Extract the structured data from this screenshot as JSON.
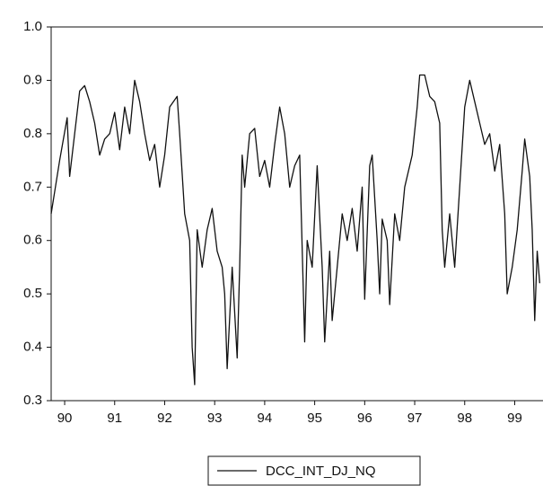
{
  "chart_data": {
    "type": "line",
    "x": [
      90.23,
      90.4,
      90.55,
      90.6,
      90.7,
      90.8,
      90.9,
      91.0,
      91.1,
      91.2,
      91.3,
      91.4,
      91.5,
      91.6,
      91.7,
      91.8,
      91.9,
      92.0,
      92.1,
      92.2,
      92.3,
      92.4,
      92.5,
      92.6,
      92.75,
      92.8,
      92.9,
      93.0,
      93.05,
      93.1,
      93.15,
      93.25,
      93.35,
      93.45,
      93.55,
      93.65,
      93.7,
      93.75,
      93.85,
      93.95,
      94.0,
      94.05,
      94.1,
      94.2,
      94.3,
      94.4,
      94.5,
      94.6,
      94.7,
      94.8,
      94.9,
      95.0,
      95.1,
      95.2,
      95.3,
      95.35,
      95.45,
      95.55,
      95.65,
      95.7,
      95.8,
      95.85,
      95.95,
      96.05,
      96.15,
      96.25,
      96.35,
      96.45,
      96.5,
      96.6,
      96.65,
      96.75,
      96.8,
      96.85,
      96.95,
      97.0,
      97.1,
      97.2,
      97.3,
      97.45,
      97.55,
      97.6,
      97.7,
      97.8,
      97.9,
      98.0,
      98.05,
      98.1,
      98.2,
      98.3,
      98.4,
      98.5,
      98.6,
      98.7,
      98.8,
      98.9,
      99.0,
      99.1,
      99.2,
      99.3,
      99.35,
      99.45,
      99.55,
      99.65,
      99.7,
      99.8,
      99.85,
      99.9,
      99.95,
      100.0
    ],
    "series": [
      {
        "name": "DCC_INT_DJ_NQ",
        "color": "#111111",
        "values": [
          0.65,
          0.75,
          0.83,
          0.72,
          0.8,
          0.88,
          0.89,
          0.86,
          0.82,
          0.76,
          0.79,
          0.8,
          0.84,
          0.77,
          0.85,
          0.8,
          0.9,
          0.86,
          0.8,
          0.75,
          0.78,
          0.7,
          0.76,
          0.85,
          0.87,
          0.8,
          0.65,
          0.6,
          0.4,
          0.33,
          0.62,
          0.55,
          0.62,
          0.66,
          0.58,
          0.55,
          0.5,
          0.36,
          0.55,
          0.38,
          0.55,
          0.76,
          0.7,
          0.8,
          0.81,
          0.72,
          0.75,
          0.7,
          0.78,
          0.85,
          0.8,
          0.7,
          0.74,
          0.76,
          0.41,
          0.6,
          0.55,
          0.74,
          0.55,
          0.41,
          0.58,
          0.45,
          0.55,
          0.65,
          0.6,
          0.66,
          0.58,
          0.7,
          0.49,
          0.74,
          0.76,
          0.6,
          0.5,
          0.64,
          0.6,
          0.48,
          0.65,
          0.6,
          0.7,
          0.76,
          0.85,
          0.91,
          0.91,
          0.87,
          0.86,
          0.82,
          0.62,
          0.55,
          0.65,
          0.55,
          0.7,
          0.85,
          0.9,
          0.86,
          0.82,
          0.78,
          0.8,
          0.73,
          0.78,
          0.65,
          0.5,
          0.55,
          0.62,
          0.73,
          0.79,
          0.72,
          0.62,
          0.45,
          0.58,
          0.52
        ]
      }
    ],
    "xlim": [
      90.23,
      100.03
    ],
    "xticks": [
      {
        "value": 90.5,
        "label": "90"
      },
      {
        "value": 91.5,
        "label": "91"
      },
      {
        "value": 92.5,
        "label": "92"
      },
      {
        "value": 93.5,
        "label": "93"
      },
      {
        "value": 94.5,
        "label": "94"
      },
      {
        "value": 95.5,
        "label": "95"
      },
      {
        "value": 96.5,
        "label": "96"
      },
      {
        "value": 97.5,
        "label": "97"
      },
      {
        "value": 98.5,
        "label": "98"
      },
      {
        "value": 99.5,
        "label": "99"
      }
    ],
    "ylim": [
      0.3,
      1
    ],
    "yticks": [
      0.3,
      0.4,
      0.5,
      0.6,
      0.7,
      0.8,
      0.9,
      {
        "value": 1,
        "label": "1.0"
      }
    ]
  }
}
